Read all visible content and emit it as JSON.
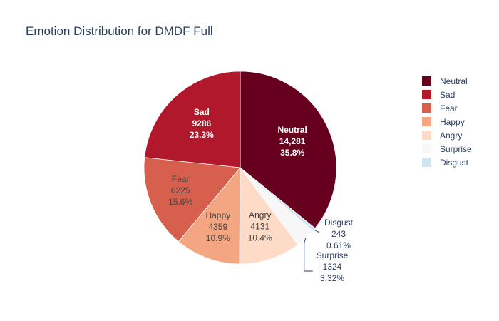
{
  "chart_data": {
    "type": "pie",
    "title": "Emotion Distribution for DMDF Full",
    "legend_position": "right",
    "slices": [
      {
        "label": "Neutral",
        "value_text": "14,281",
        "value": 14281,
        "percent": "35.8%",
        "color": "#67001f",
        "text_color": "#ffffff",
        "bold": true
      },
      {
        "label": "Disgust",
        "value_text": "243",
        "value": 243,
        "percent": "0.61%",
        "color": "#d1e5f0",
        "text_color": "#2a3f5f",
        "bold": false
      },
      {
        "label": "Surprise",
        "value_text": "1324",
        "value": 1324,
        "percent": "3.32%",
        "color": "#f7f7f7",
        "text_color": "#2a3f5f",
        "bold": false
      },
      {
        "label": "Angry",
        "value_text": "4131",
        "value": 4131,
        "percent": "10.4%",
        "color": "#fddbc7",
        "text_color": "#444444",
        "bold": false
      },
      {
        "label": "Happy",
        "value_text": "4359",
        "value": 4359,
        "percent": "10.9%",
        "color": "#f4a582",
        "text_color": "#444444",
        "bold": false
      },
      {
        "label": "Fear",
        "value_text": "6225",
        "value": 6225,
        "percent": "15.6%",
        "color": "#d6604d",
        "text_color": "#444444",
        "bold": false
      },
      {
        "label": "Sad",
        "value_text": "9286",
        "value": 9286,
        "percent": "23.3%",
        "color": "#b2182b",
        "text_color": "#ffffff",
        "bold": true
      }
    ],
    "legend": [
      {
        "label": "Neutral",
        "color": "#67001f"
      },
      {
        "label": "Sad",
        "color": "#b2182b"
      },
      {
        "label": "Fear",
        "color": "#d6604d"
      },
      {
        "label": "Happy",
        "color": "#f4a582"
      },
      {
        "label": "Angry",
        "color": "#fddbc7"
      },
      {
        "label": "Surprise",
        "color": "#f7f7f7"
      },
      {
        "label": "Disgust",
        "color": "#d1e5f0"
      }
    ]
  }
}
